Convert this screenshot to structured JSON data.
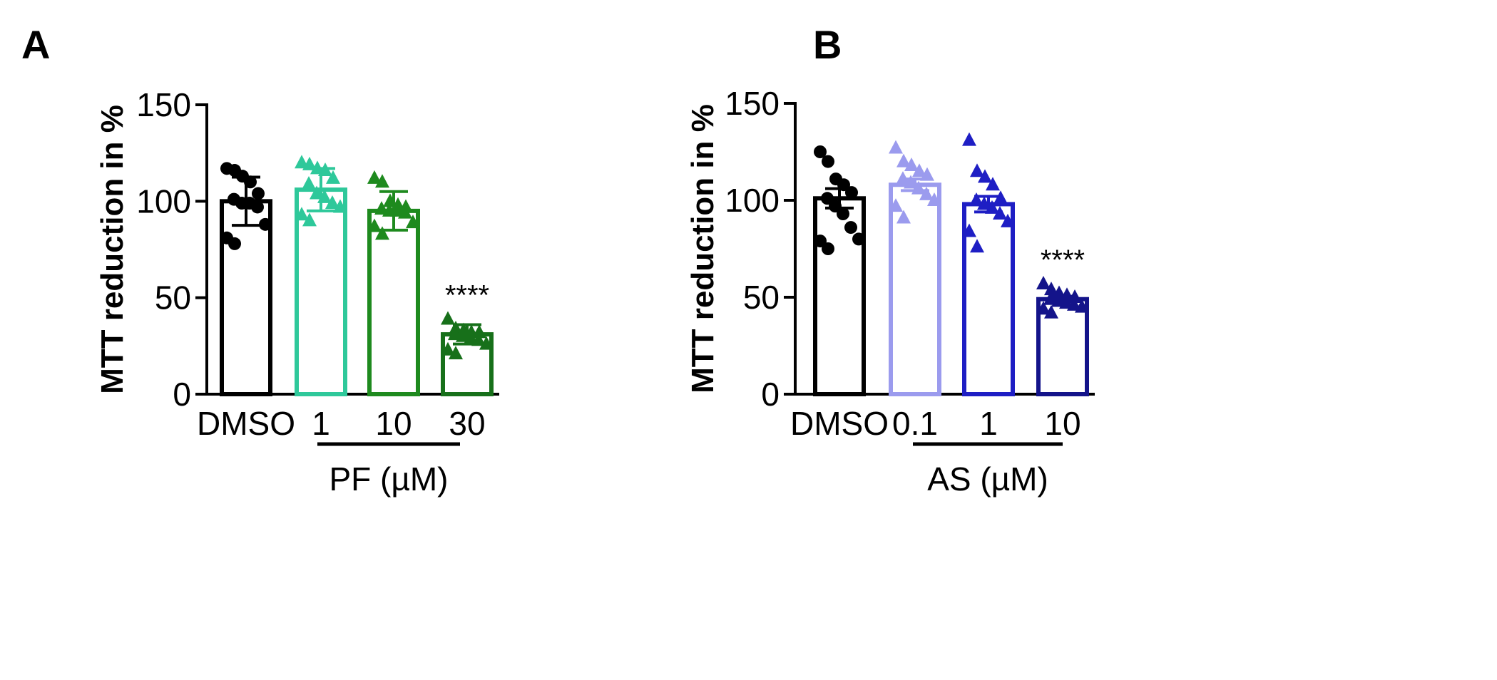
{
  "chart_data": [
    {
      "type": "bar",
      "panel_label": "A",
      "title": "",
      "ylabel": "MTT reduction in %",
      "xlabel": "PF (µM)",
      "ylim": [
        0,
        150
      ],
      "yticks": [
        0,
        50,
        100,
        150
      ],
      "error_type": "SD",
      "categories": [
        "DMSO",
        "1",
        "10",
        "30"
      ],
      "treatment_group": [
        "1",
        "10",
        "30"
      ],
      "values": [
        100,
        106,
        95,
        31
      ],
      "errors": [
        12.5,
        11,
        10,
        5
      ],
      "colors": [
        "#000000",
        "#2ec89a",
        "#1e8a1e",
        "#17701a"
      ],
      "markers": [
        "circle",
        "triangle",
        "triangle",
        "triangle"
      ],
      "annotations": [
        "",
        "",
        "",
        "****"
      ],
      "points": [
        [
          117,
          116,
          113,
          110,
          104,
          101,
          99,
          99,
          97,
          88,
          81,
          78
        ],
        [
          120,
          119,
          117,
          116,
          112,
          109,
          104,
          102,
          99,
          97,
          93,
          90
        ],
        [
          112,
          110,
          100,
          98,
          97,
          96,
          95,
          95,
          94,
          89,
          87,
          83
        ],
        [
          39,
          34,
          33,
          32,
          32,
          31,
          30,
          29,
          28,
          26,
          23,
          21
        ]
      ]
    },
    {
      "type": "bar",
      "panel_label": "B",
      "title": "",
      "ylabel": "MTT reduction in %",
      "xlabel": "AS (µM)",
      "ylim": [
        0,
        150
      ],
      "yticks": [
        0,
        50,
        100,
        150
      ],
      "error_type": "SEM",
      "categories": [
        "DMSO",
        "0.1",
        "1",
        "10"
      ],
      "treatment_group": [
        "0.1",
        "1",
        "10"
      ],
      "values": [
        101,
        108,
        98,
        49
      ],
      "errors": [
        5,
        3,
        4,
        1.5
      ],
      "colors": [
        "#000000",
        "#9b9bee",
        "#1e1ec4",
        "#14148a"
      ],
      "markers": [
        "circle",
        "triangle",
        "triangle",
        "triangle"
      ],
      "annotations": [
        "",
        "",
        "",
        "****"
      ],
      "points": [
        [
          125,
          120,
          111,
          108,
          104,
          101,
          97,
          93,
          86,
          80,
          79,
          75
        ],
        [
          127,
          120,
          118,
          115,
          113,
          111,
          109,
          106,
          103,
          100,
          97,
          91
        ],
        [
          131,
          115,
          112,
          108,
          101,
          100,
          98,
          96,
          93,
          89,
          84,
          76
        ],
        [
          57,
          54,
          52,
          51,
          50,
          49,
          48,
          47,
          46,
          45,
          44,
          42
        ]
      ]
    }
  ]
}
